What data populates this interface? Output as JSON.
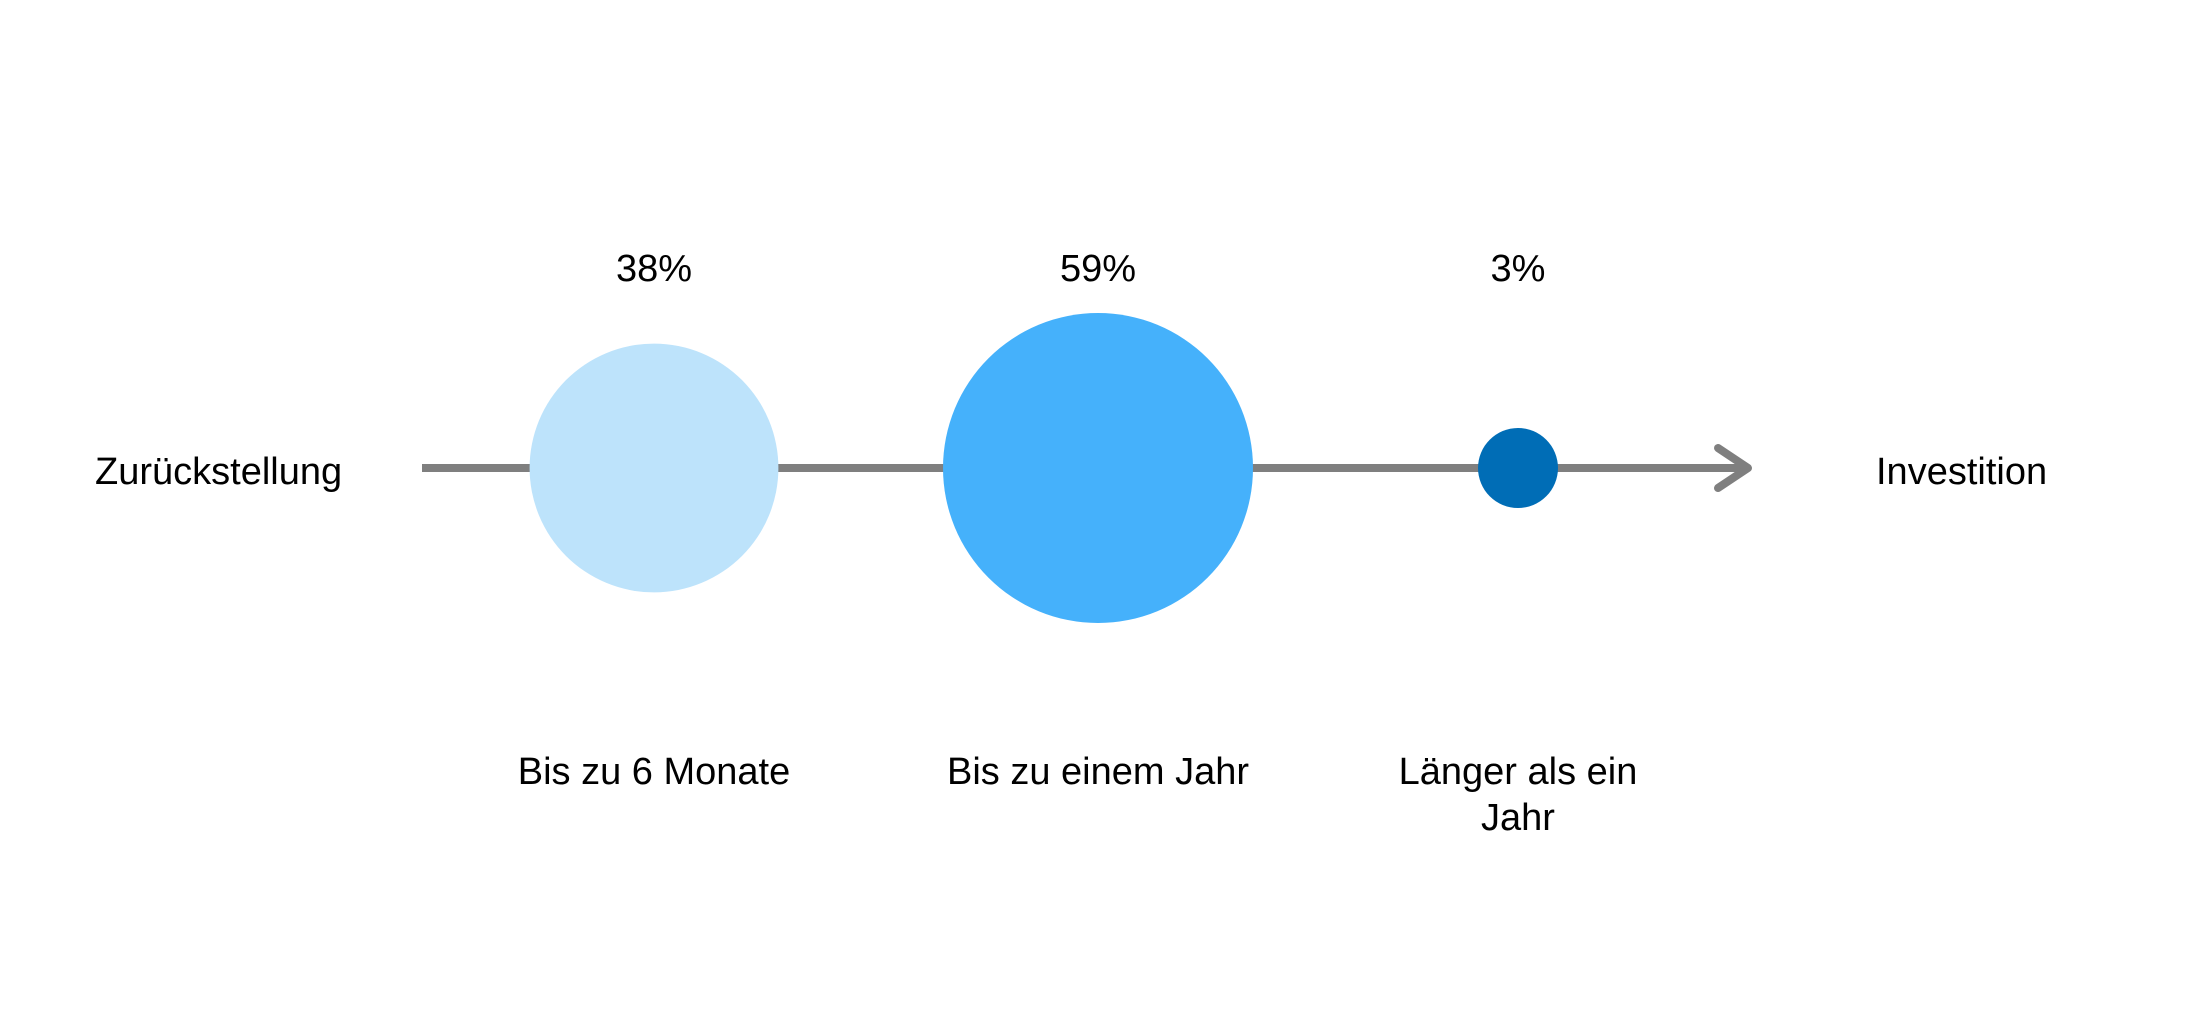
{
  "chart_data": {
    "type": "scatter",
    "title": "",
    "axis": {
      "start_label": "Zurückstellung",
      "end_label": "Investition"
    },
    "categories": [
      "Bis zu 6 Monate",
      "Bis zu einem Jahr",
      "Länger als ein Jahr"
    ],
    "category_lines": [
      [
        "Bis zu 6 Monate"
      ],
      [
        "Bis zu einem Jahr"
      ],
      [
        "Länger als ein",
        "Jahr"
      ]
    ],
    "values": [
      38,
      59,
      3
    ],
    "value_labels": [
      "38%",
      "59%",
      "3%"
    ],
    "colors": [
      "#BDE3FB",
      "#45B1FB",
      "#006DB6"
    ],
    "axis_color": "#7F7F7F",
    "grid": false,
    "legend": "none"
  }
}
